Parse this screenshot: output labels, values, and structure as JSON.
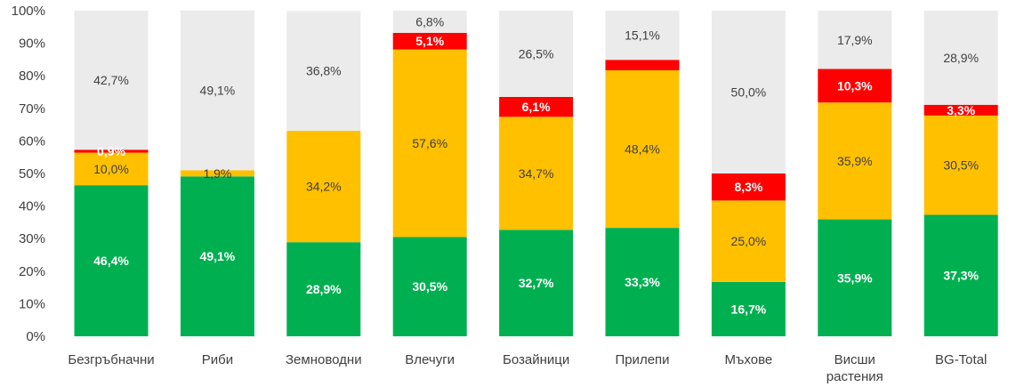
{
  "chart_data": {
    "type": "bar",
    "stacked": true,
    "categories": [
      [
        "Безгръбначни"
      ],
      [
        "Риби"
      ],
      [
        "Земноводни"
      ],
      [
        "Влечуги"
      ],
      [
        "Бозайници"
      ],
      [
        "Прилепи"
      ],
      [
        "Мъхове"
      ],
      [
        "Висши",
        "растения"
      ],
      [
        "BG-Total"
      ]
    ],
    "series": [
      {
        "color": "#00B050",
        "label_color": "#ffffff",
        "label_bold": true,
        "values": [
          46.4,
          49.1,
          28.9,
          30.5,
          32.7,
          33.3,
          16.7,
          35.9,
          37.3
        ],
        "labels": [
          "46,4%",
          "49,1%",
          "28,9%",
          "30,5%",
          "32,7%",
          "33,3%",
          "16,7%",
          "35,9%",
          "37,3%"
        ]
      },
      {
        "color": "#FFC000",
        "label_color": "#404040",
        "label_bold": false,
        "values": [
          10.0,
          1.9,
          34.2,
          57.6,
          34.7,
          48.4,
          25.0,
          35.9,
          30.5
        ],
        "labels": [
          "10,0%",
          "1,9%",
          "34,2%",
          "57,6%",
          "34,7%",
          "48,4%",
          "25,0%",
          "35,9%",
          "30,5%"
        ]
      },
      {
        "color": "#FF0000",
        "label_color": "#ffffff",
        "label_bold": true,
        "values": [
          0.9,
          0.0,
          0.0,
          5.1,
          6.1,
          3.2,
          8.3,
          10.3,
          3.3
        ],
        "labels": [
          "0,9%",
          "",
          "",
          "5,1%",
          "6,1%",
          "",
          "8,3%",
          "10,3%",
          "3,3%"
        ]
      },
      {
        "color": "#EBEBEB",
        "label_color": "#404040",
        "label_bold": false,
        "values": [
          42.7,
          49.1,
          36.8,
          6.8,
          26.5,
          15.1,
          50.0,
          17.9,
          28.9
        ],
        "labels": [
          "42,7%",
          "49,1%",
          "36,8%",
          "6,8%",
          "26,5%",
          "15,1%",
          "50,0%",
          "17,9%",
          "28,9%"
        ]
      }
    ],
    "y_ticks": [
      "0%",
      "10%",
      "20%",
      "30%",
      "40%",
      "50%",
      "60%",
      "70%",
      "80%",
      "90%",
      "100%"
    ],
    "ylim": [
      0,
      100
    ],
    "title": "",
    "xlabel": "",
    "ylabel": "",
    "grid": false,
    "legend": "none"
  }
}
